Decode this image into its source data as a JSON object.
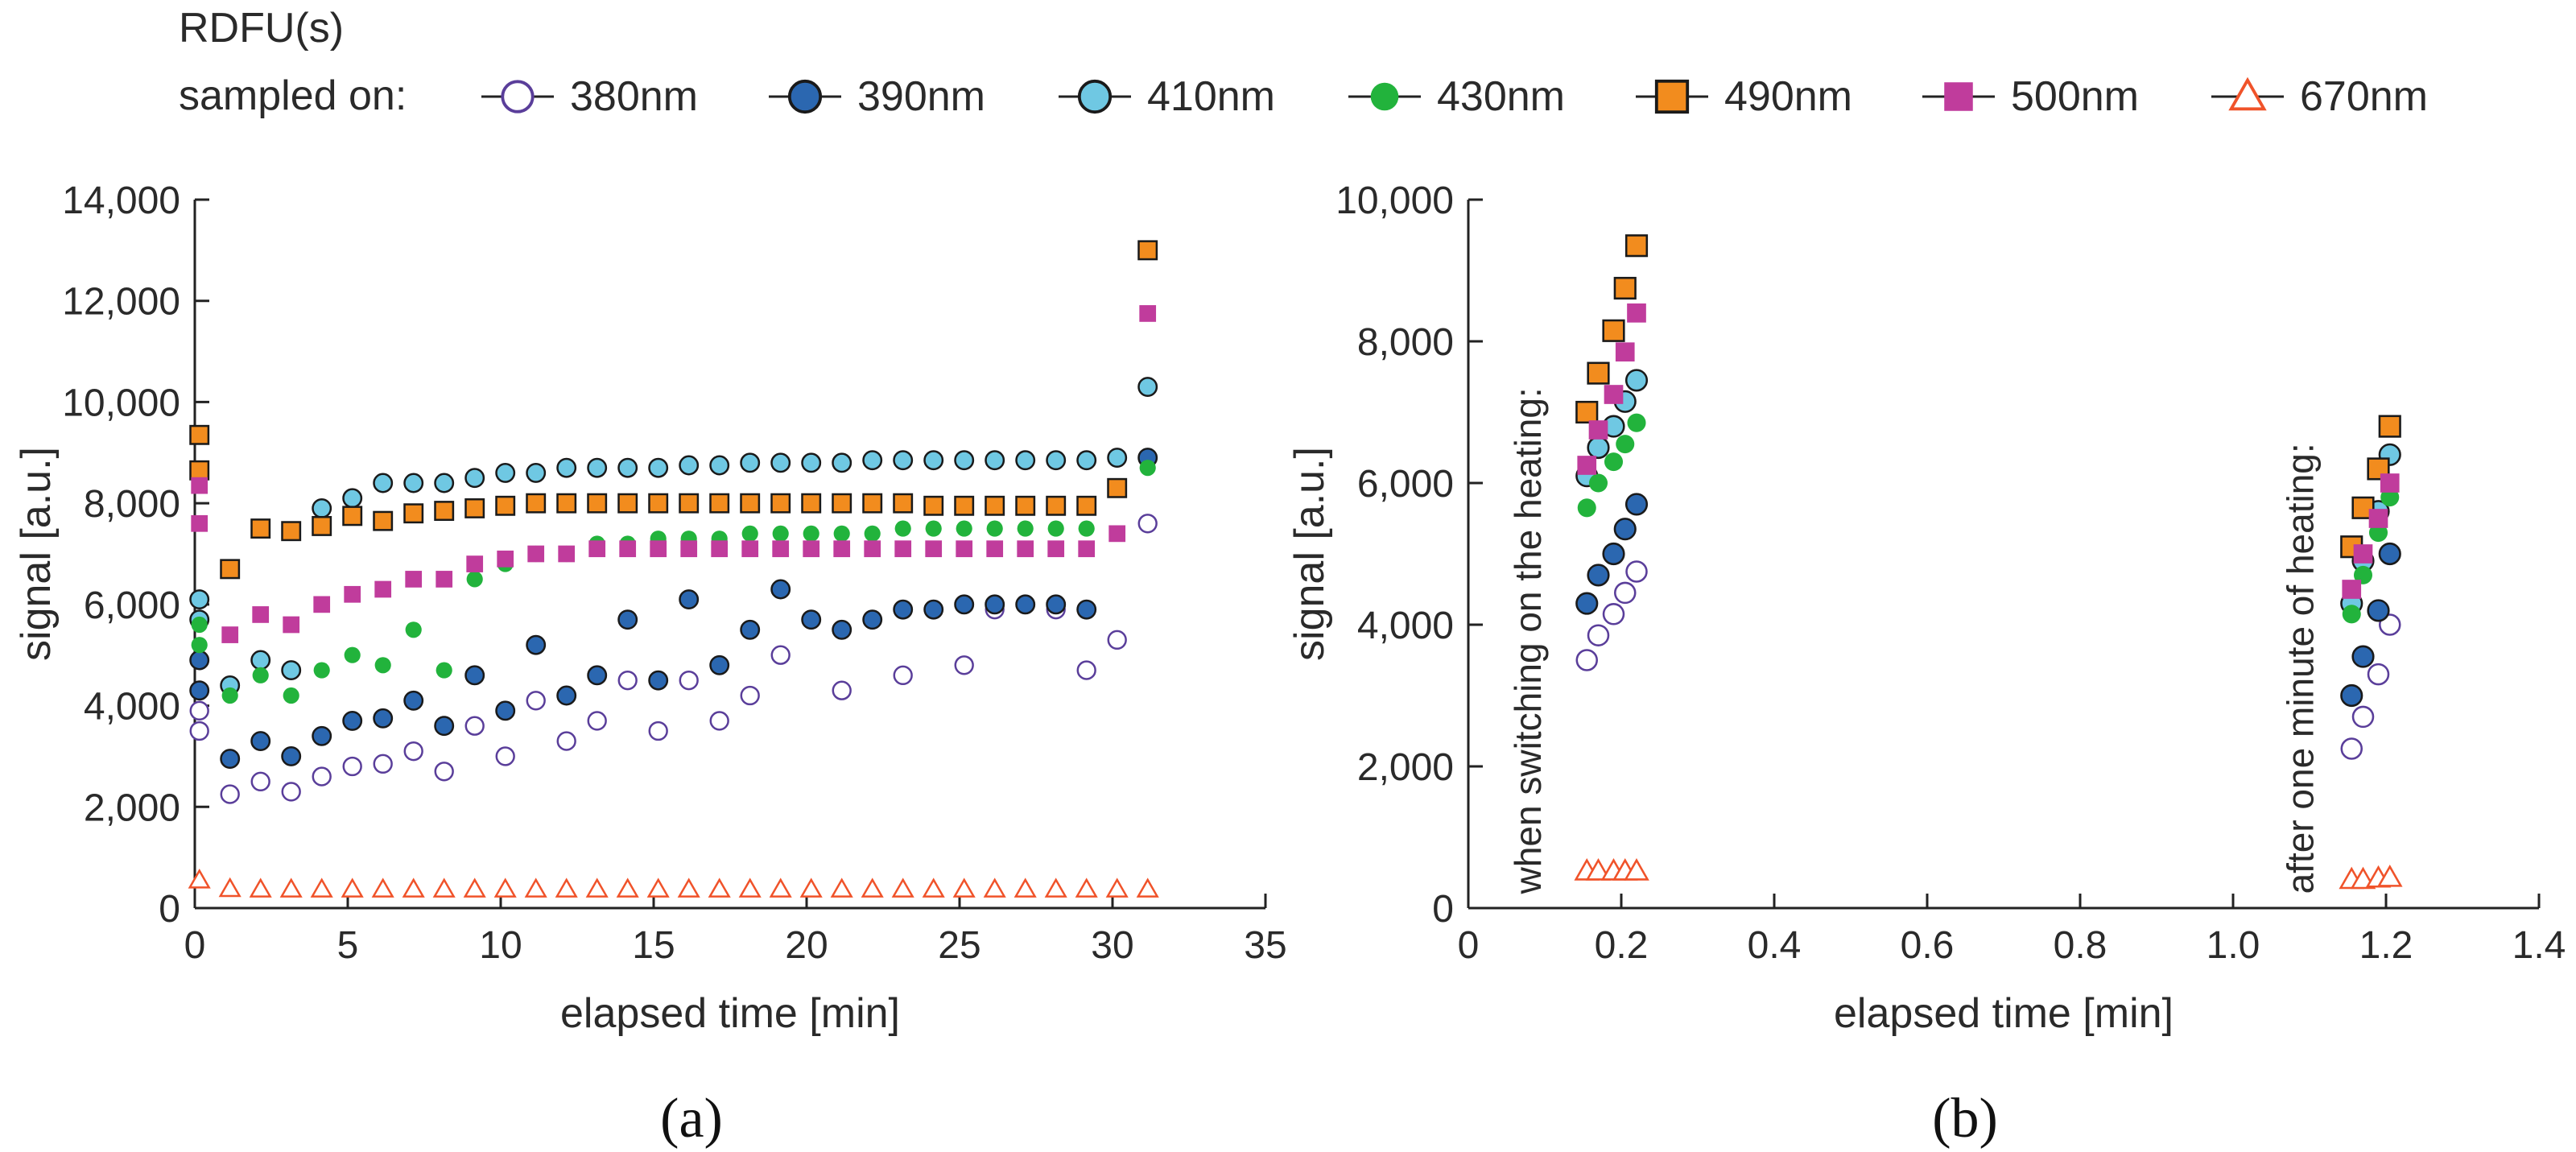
{
  "legend": {
    "title": "RDFU(s)",
    "prefix": "sampled on:",
    "entries": [
      {
        "key": "s380",
        "label": "380nm",
        "marker": "circle-open",
        "color": "#5a3e9a"
      },
      {
        "key": "s390",
        "label": "390nm",
        "marker": "circle",
        "color": "#2b67b0"
      },
      {
        "key": "s410",
        "label": "410nm",
        "marker": "circle",
        "color": "#6fc8e3"
      },
      {
        "key": "s430",
        "label": "430nm",
        "marker": "dot",
        "color": "#22b33c"
      },
      {
        "key": "s490",
        "label": "490nm",
        "marker": "square",
        "color": "#f28c1e"
      },
      {
        "key": "s500",
        "label": "500nm",
        "marker": "square-plain",
        "color": "#c03c9c"
      },
      {
        "key": "s670",
        "label": "670nm",
        "marker": "triangle-open",
        "color": "#f0532a"
      }
    ]
  },
  "chart_data": [
    {
      "id": "a",
      "panel_label": "(a)",
      "type": "scatter",
      "xlabel": "elapsed time [min]",
      "ylabel": "signal [a.u.]",
      "xlim": [
        0,
        35
      ],
      "ylim": [
        0,
        14000
      ],
      "xticks": [
        0,
        5,
        10,
        15,
        20,
        25,
        30,
        35
      ],
      "xtick_labels": [
        "0",
        "5",
        "10",
        "15",
        "20",
        "25",
        "30",
        "35"
      ],
      "yticks": [
        0,
        2000,
        4000,
        6000,
        8000,
        10000,
        12000,
        14000
      ],
      "ytick_labels": [
        "0",
        "2,000",
        "4,000",
        "6,000",
        "8,000",
        "10,000",
        "12,000",
        "14,000"
      ],
      "series": [
        {
          "key": "s380",
          "name": "380nm",
          "x": [
            0.15,
            0.15,
            1.15,
            2.15,
            3.15,
            4.15,
            5.15,
            6.15,
            7.15,
            8.15,
            9.15,
            10.15,
            11.15,
            12.15,
            13.15,
            14.15,
            15.15,
            16.15,
            17.15,
            18.15,
            19.15,
            20.15,
            21.15,
            22.15,
            23.15,
            24.15,
            25.15,
            26.15,
            27.15,
            28.15,
            29.15,
            30.15,
            31.15
          ],
          "y": [
            3500,
            3900,
            2250,
            2500,
            2300,
            2600,
            2800,
            2850,
            3100,
            2700,
            3600,
            3000,
            4100,
            3300,
            3700,
            4500,
            3500,
            4500,
            3700,
            4200,
            5000,
            5700,
            4300,
            5700,
            4600,
            5900,
            4800,
            5900,
            6000,
            5900,
            4700,
            5300,
            7600
          ]
        },
        {
          "key": "s390",
          "name": "390nm",
          "x": [
            0.15,
            0.15,
            1.15,
            2.15,
            3.15,
            4.15,
            5.15,
            6.15,
            7.15,
            8.15,
            9.15,
            10.15,
            11.15,
            12.15,
            13.15,
            14.15,
            15.15,
            16.15,
            17.15,
            18.15,
            19.15,
            20.15,
            21.15,
            22.15,
            23.15,
            24.15,
            25.15,
            26.15,
            27.15,
            28.15,
            29.15,
            31.15
          ],
          "y": [
            4300,
            4900,
            2950,
            3300,
            3000,
            3400,
            3700,
            3750,
            4100,
            3600,
            4600,
            3900,
            5200,
            4200,
            4600,
            5700,
            4500,
            6100,
            4800,
            5500,
            6300,
            5700,
            5500,
            5700,
            5900,
            5900,
            6000,
            6000,
            6000,
            6000,
            5900,
            8900
          ]
        },
        {
          "key": "s410",
          "name": "410nm",
          "x": [
            0.15,
            0.15,
            1.15,
            2.15,
            3.15,
            4.15,
            5.15,
            6.15,
            7.15,
            8.15,
            9.15,
            10.15,
            11.15,
            12.15,
            13.15,
            14.15,
            15.15,
            16.15,
            17.15,
            18.15,
            19.15,
            20.15,
            21.15,
            22.15,
            23.15,
            24.15,
            25.15,
            26.15,
            27.15,
            28.15,
            29.15,
            30.15,
            31.15
          ],
          "y": [
            5700,
            6100,
            4400,
            4900,
            4700,
            7900,
            8100,
            8400,
            8400,
            8400,
            8500,
            8600,
            8600,
            8700,
            8700,
            8700,
            8700,
            8750,
            8750,
            8800,
            8800,
            8800,
            8800,
            8850,
            8850,
            8850,
            8850,
            8850,
            8850,
            8850,
            8850,
            8900,
            10300
          ]
        },
        {
          "key": "s430",
          "name": "430nm",
          "x": [
            0.15,
            0.15,
            1.15,
            2.15,
            3.15,
            4.15,
            5.15,
            6.15,
            7.15,
            8.15,
            9.15,
            10.15,
            11.15,
            12.15,
            13.15,
            14.15,
            15.15,
            16.15,
            17.15,
            18.15,
            19.15,
            20.15,
            21.15,
            22.15,
            23.15,
            24.15,
            25.15,
            26.15,
            27.15,
            28.15,
            29.15,
            30.15,
            31.15
          ],
          "y": [
            5600,
            5200,
            4200,
            4600,
            4200,
            4700,
            5000,
            4800,
            5500,
            4700,
            6500,
            6800,
            7000,
            7000,
            7200,
            7200,
            7300,
            7300,
            7300,
            7400,
            7400,
            7400,
            7400,
            7400,
            7500,
            7500,
            7500,
            7500,
            7500,
            7500,
            7500,
            7400,
            8700
          ]
        },
        {
          "key": "s490",
          "name": "490nm",
          "x": [
            0.15,
            0.15,
            1.15,
            2.15,
            3.15,
            4.15,
            5.15,
            6.15,
            7.15,
            8.15,
            9.15,
            10.15,
            11.15,
            12.15,
            13.15,
            14.15,
            15.15,
            16.15,
            17.15,
            18.15,
            19.15,
            20.15,
            21.15,
            22.15,
            23.15,
            24.15,
            25.15,
            26.15,
            27.15,
            28.15,
            29.15,
            30.15,
            31.15
          ],
          "y": [
            9350,
            8650,
            6700,
            7500,
            7450,
            7550,
            7750,
            7650,
            7800,
            7850,
            7900,
            7950,
            8000,
            8000,
            8000,
            8000,
            8000,
            8000,
            8000,
            8000,
            8000,
            8000,
            8000,
            8000,
            8000,
            7950,
            7950,
            7950,
            7950,
            7950,
            7950,
            8300,
            13000
          ]
        },
        {
          "key": "s500",
          "name": "500nm",
          "x": [
            0.15,
            0.15,
            1.15,
            2.15,
            3.15,
            4.15,
            5.15,
            6.15,
            7.15,
            8.15,
            9.15,
            10.15,
            11.15,
            12.15,
            13.15,
            14.15,
            15.15,
            16.15,
            17.15,
            18.15,
            19.15,
            20.15,
            21.15,
            22.15,
            23.15,
            24.15,
            25.15,
            26.15,
            27.15,
            28.15,
            29.15,
            30.15,
            31.15
          ],
          "y": [
            8350,
            7600,
            5400,
            5800,
            5600,
            6000,
            6200,
            6300,
            6500,
            6500,
            6800,
            6900,
            7000,
            7000,
            7100,
            7100,
            7100,
            7100,
            7100,
            7100,
            7100,
            7100,
            7100,
            7100,
            7100,
            7100,
            7100,
            7100,
            7100,
            7100,
            7100,
            7400,
            11750
          ]
        },
        {
          "key": "s670",
          "name": "670nm",
          "x": [
            0.15,
            1.15,
            2.15,
            3.15,
            4.15,
            5.15,
            6.15,
            7.15,
            8.15,
            9.15,
            10.15,
            11.15,
            12.15,
            13.15,
            14.15,
            15.15,
            16.15,
            17.15,
            18.15,
            19.15,
            20.15,
            21.15,
            22.15,
            23.15,
            24.15,
            25.15,
            26.15,
            27.15,
            28.15,
            29.15,
            30.15,
            31.15
          ],
          "y": [
            550,
            380,
            370,
            370,
            370,
            370,
            370,
            370,
            370,
            370,
            370,
            370,
            370,
            370,
            370,
            370,
            370,
            370,
            370,
            370,
            370,
            370,
            370,
            370,
            370,
            370,
            370,
            370,
            370,
            370,
            370,
            370
          ]
        }
      ]
    },
    {
      "id": "b",
      "panel_label": "(b)",
      "type": "scatter",
      "xlabel": "elapsed time [min]",
      "ylabel": "signal [a.u.]",
      "xlim": [
        0,
        1.4
      ],
      "ylim": [
        0,
        10000
      ],
      "xticks": [
        0,
        0.2,
        0.4,
        0.6,
        0.8,
        1.0,
        1.2,
        1.4
      ],
      "xtick_labels": [
        "0",
        "0.2",
        "0.4",
        "0.6",
        "0.8",
        "1.0",
        "1.2",
        "1.4"
      ],
      "yticks": [
        0,
        2000,
        4000,
        6000,
        8000,
        10000
      ],
      "ytick_labels": [
        "0",
        "2,000",
        "4,000",
        "6,000",
        "8,000",
        "10,000"
      ],
      "annotations": [
        {
          "text": "when switching on the heating:",
          "x": 0.095,
          "y": 200,
          "orientation": "vertical"
        },
        {
          "text": "after one minute of heating:",
          "x": 1.105,
          "y": 200,
          "orientation": "vertical"
        }
      ],
      "series": [
        {
          "key": "s380",
          "name": "380nm",
          "x": [
            0.155,
            0.17,
            0.19,
            0.205,
            0.22,
            1.155,
            1.17,
            1.19,
            1.205
          ],
          "y": [
            3500,
            3850,
            4150,
            4450,
            4750,
            2250,
            2700,
            3300,
            4000
          ]
        },
        {
          "key": "s390",
          "name": "390nm",
          "x": [
            0.155,
            0.17,
            0.19,
            0.205,
            0.22,
            1.155,
            1.17,
            1.19,
            1.205
          ],
          "y": [
            4300,
            4700,
            5000,
            5350,
            5700,
            3000,
            3550,
            4200,
            5000
          ]
        },
        {
          "key": "s410",
          "name": "410nm",
          "x": [
            0.155,
            0.17,
            0.19,
            0.205,
            0.22,
            1.155,
            1.17,
            1.19,
            1.205
          ],
          "y": [
            6100,
            6500,
            6800,
            7150,
            7450,
            4300,
            4900,
            5600,
            6400
          ]
        },
        {
          "key": "s430",
          "name": "430nm",
          "x": [
            0.155,
            0.17,
            0.19,
            0.205,
            0.22,
            1.155,
            1.17,
            1.19,
            1.205
          ],
          "y": [
            5650,
            6000,
            6300,
            6550,
            6850,
            4150,
            4700,
            5300,
            5800
          ]
        },
        {
          "key": "s490",
          "name": "490nm",
          "x": [
            0.155,
            0.17,
            0.19,
            0.205,
            0.22,
            1.155,
            1.17,
            1.19,
            1.205
          ],
          "y": [
            7000,
            7550,
            8150,
            8750,
            9350,
            5100,
            5650,
            6200,
            6800
          ]
        },
        {
          "key": "s500",
          "name": "500nm",
          "x": [
            0.155,
            0.17,
            0.19,
            0.205,
            0.22,
            1.155,
            1.17,
            1.19,
            1.205
          ],
          "y": [
            6250,
            6750,
            7250,
            7850,
            8400,
            4500,
            5000,
            5500,
            6000
          ]
        },
        {
          "key": "s670",
          "name": "670nm",
          "x": [
            0.155,
            0.17,
            0.19,
            0.205,
            0.22,
            1.155,
            1.17,
            1.19,
            1.205
          ],
          "y": [
            520,
            520,
            520,
            520,
            520,
            400,
            400,
            420,
            430
          ]
        }
      ]
    }
  ]
}
